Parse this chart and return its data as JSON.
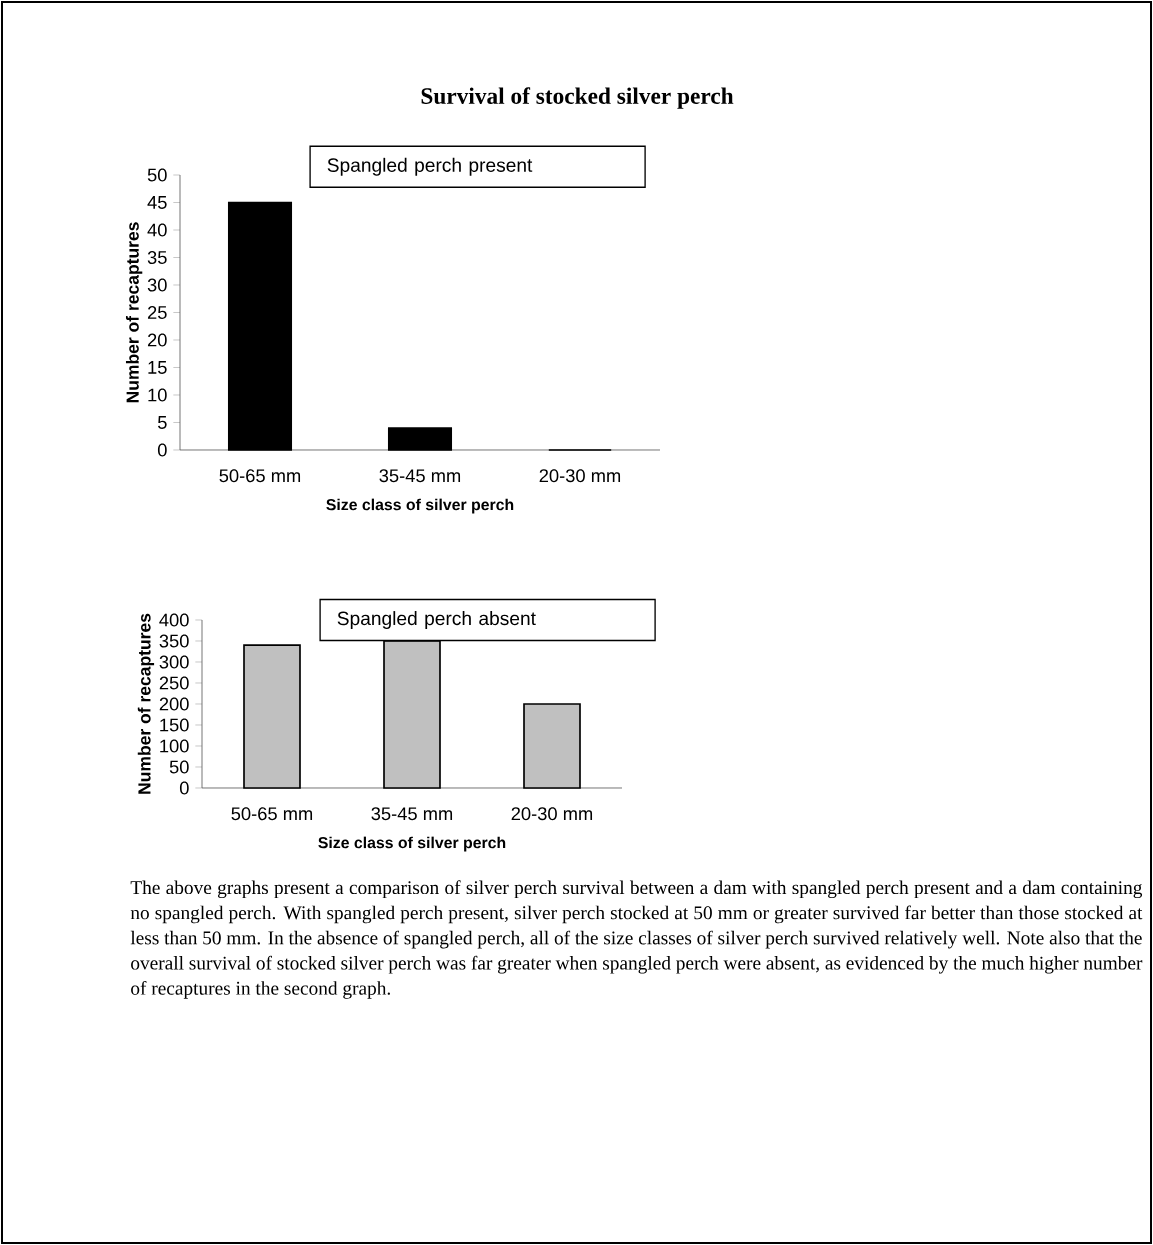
{
  "chart_data": [
    {
      "type": "bar",
      "title": "Survival of stocked silver perch",
      "categories": [
        "50-65 mm",
        "35-45 mm",
        "20-30 mm"
      ],
      "values": [
        45,
        4,
        0
      ],
      "color": "#000000",
      "xlabel": "Size class of silver perch",
      "ylabel": "Number of recaptures",
      "ylim": [
        0,
        50
      ],
      "yticks": [
        0,
        5,
        10,
        15,
        20,
        25,
        30,
        35,
        40,
        45,
        50
      ],
      "annotations": [
        "Spangled perch present"
      ]
    },
    {
      "type": "bar",
      "categories": [
        "50-65 mm",
        "35-45 mm",
        "20-30 mm"
      ],
      "values": [
        340,
        350,
        200
      ],
      "color": "#c0c0c0",
      "xlabel": "Size class of silver perch",
      "ylabel": "Number of recaptures",
      "ylim": [
        0,
        400
      ],
      "yticks": [
        0,
        50,
        100,
        150,
        200,
        250,
        300,
        350,
        400
      ],
      "annotations": [
        "Spangled perch absent",
        "The above graphs present a comparison of silver perch survival between a dam with spangled perch present and a dam containing no spangled perch. With spangled perch present, silver perch stocked at 50 mm or greater survived far better than those stocked at less than 50 mm. In the absence of spangled perch, all of the size classes of silver perch survived relatively well. Note also that the overall survival of stocked silver perch was far greater when spangled perch were absent, as evidenced by the much higher number of recaptures in the second graph."
      ]
    }
  ]
}
